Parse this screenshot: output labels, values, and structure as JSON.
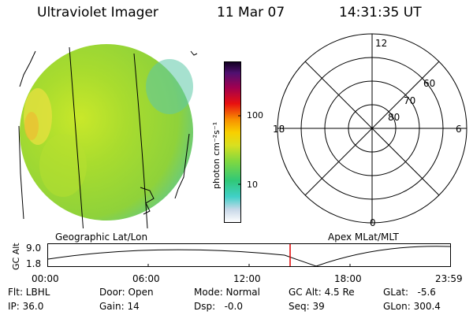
{
  "header": {
    "instrument": "Ultraviolet Imager",
    "date": "11 Mar 07",
    "time": "14:31:35 UT"
  },
  "colorbar": {
    "unit_label": "photon cm⁻²s⁻¹",
    "ticks": [
      "100",
      "10"
    ]
  },
  "polar_plot": {
    "hour_labels": [
      "12",
      "18",
      "6",
      "0"
    ],
    "lat_labels": [
      "60",
      "70",
      "80"
    ]
  },
  "timeline": {
    "left_title": "Geographic Lat/Lon",
    "right_title": "Apex MLat/MLT",
    "ylabel": "GC Alt",
    "ytick_top": "9.0",
    "ytick_bottom": "1.8",
    "xticks": [
      "00:00",
      "06:00",
      "12:00",
      "18:00",
      "23:59"
    ],
    "marker_time": "14:31:35"
  },
  "info": {
    "flt": "Flt: LBHL",
    "ip": "IP: 36.0",
    "door": "Door: Open",
    "gain": "Gain: 14",
    "mode": "Mode: Normal",
    "dsp": "Dsp:   -0.0",
    "gc_alt": "GC Alt: 4.5 Re",
    "seq": "Seq: 39",
    "glat": "GLat:   -5.6",
    "glon": "GLon: 300.4"
  },
  "colors": {
    "marker": "#e00000",
    "disk_main": "#9ed630"
  }
}
